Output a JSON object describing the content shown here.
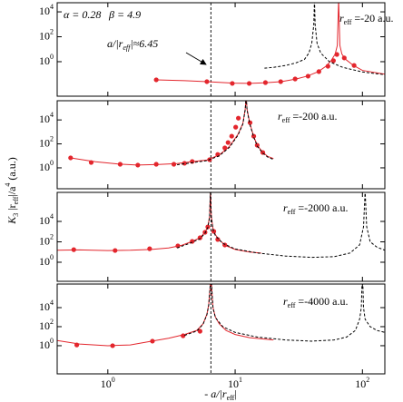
{
  "chart_data": [
    {
      "type": "line",
      "xlim": [
        0.4,
        150
      ],
      "ylim": [
        0.0017,
        54000
      ],
      "log_x": true,
      "log_y": true,
      "yticks": [
        {
          "value": 1,
          "label": "10",
          "exponent": "0"
        },
        {
          "value": 100,
          "label": "10",
          "exponent": "2"
        },
        {
          "value": 10000,
          "label": "10",
          "exponent": "4"
        }
      ],
      "params": [
        "α = 0.28",
        "β = 4.9"
      ],
      "annotation": [
        "a/|r",
        "eff",
        "|≈6.45"
      ],
      "label": [
        "r",
        "eff",
        " =-20 a.u."
      ],
      "vline": 6.45,
      "y_label": [
        "K",
        "3",
        " |r",
        "eff",
        "|/a",
        "4",
        " (a.u.)"
      ],
      "series": [
        {
          "color": "#e3262d",
          "style": "line",
          "x": [
            2.4,
            4,
            6,
            9.5,
            13,
            17,
            23,
            30,
            37,
            45,
            52,
            57,
            61,
            63.5,
            65,
            66.5,
            69,
            74,
            85,
            100,
            150
          ],
          "values": [
            0.035,
            0.03,
            0.025,
            0.019,
            0.018,
            0.02,
            0.025,
            0.04,
            0.07,
            0.16,
            0.45,
            1.3,
            4,
            20,
            100000,
            20,
            4,
            1.5,
            0.5,
            0.2,
            0.1
          ]
        },
        {
          "color": "#e3262d",
          "style": "markers",
          "x": [
            2.4,
            6,
            9.5,
            12.9,
            17.3,
            22.8,
            29.6,
            37.4,
            45.5,
            53.6,
            59.2,
            63,
            72,
            86
          ],
          "values": [
            0.035,
            0.025,
            0.018,
            0.018,
            0.021,
            0.025,
            0.041,
            0.069,
            0.16,
            0.43,
            1.2,
            3.8,
            2,
            0.5
          ]
        },
        {
          "color": "#000000",
          "style": "dashed",
          "x": [
            17,
            20,
            25,
            30,
            35,
            38,
            40,
            41.5,
            42,
            42.5,
            44,
            47,
            55,
            70,
            100,
            150
          ],
          "values": [
            0.3,
            0.35,
            0.5,
            0.8,
            1.5,
            5,
            30,
            1000,
            100000,
            1000,
            30,
            5,
            1,
            0.35,
            0.15,
            0.09
          ]
        }
      ]
    },
    {
      "type": "line",
      "xlim": [
        0.4,
        150
      ],
      "ylim": [
        0.018,
        400000
      ],
      "log_x": true,
      "log_y": true,
      "yticks": [
        {
          "value": 1,
          "label": "10",
          "exponent": "0"
        },
        {
          "value": 100,
          "label": "10",
          "exponent": "2"
        },
        {
          "value": 10000,
          "label": "10",
          "exponent": "4"
        }
      ],
      "label": [
        "r",
        "eff",
        " =-200 a.u."
      ],
      "vline": 6.45,
      "series": [
        {
          "color": "#e3262d",
          "style": "line",
          "x": [
            0.51,
            0.8,
            1.2,
            1.7,
            2.5,
            3.5,
            4.5,
            6,
            7.5,
            9,
            10.5,
            11.5,
            12,
            12.2,
            12.4,
            13,
            14,
            15,
            16.5,
            18,
            20
          ],
          "values": [
            6.8,
            3.2,
            2.1,
            1.7,
            1.9,
            2.3,
            3.2,
            4.5,
            12,
            60,
            600,
            5000,
            80000,
            1000000,
            80000,
            6000,
            400,
            70,
            20,
            9,
            6
          ]
        },
        {
          "color": "#e3262d",
          "style": "markers",
          "x": [
            0.51,
            0.74,
            1.25,
            1.72,
            2.4,
            3.3,
            4.0,
            4.6,
            6.3,
            7.3,
            8.3,
            8.8,
            9.4,
            10.1,
            10.6,
            13.1,
            14.0,
            14.9,
            16.5
          ],
          "values": [
            6.8,
            2.8,
            2,
            1.7,
            2,
            2,
            2.4,
            3.4,
            4.8,
            13,
            46,
            130,
            440,
            2500,
            14000,
            5900,
            440,
            77,
            19
          ]
        },
        {
          "color": "#000000",
          "style": "dashed",
          "x": [
            3.5,
            4.5,
            6,
            7.5,
            9,
            10.5,
            11.5,
            12,
            12.2,
            12.4,
            13,
            14,
            15,
            16.5,
            18,
            20
          ],
          "values": [
            1.8,
            2.6,
            4,
            10,
            50,
            500,
            4500,
            70000,
            1000000,
            70000,
            5000,
            350,
            60,
            17,
            8,
            5
          ]
        }
      ]
    },
    {
      "type": "line",
      "xlim": [
        0.4,
        150
      ],
      "ylim": [
        0.0135,
        7000000
      ],
      "log_x": true,
      "log_y": true,
      "yticks": [
        {
          "value": 1,
          "label": "10",
          "exponent": "0"
        },
        {
          "value": 100,
          "label": "10",
          "exponent": "2"
        },
        {
          "value": 10000,
          "label": "10",
          "exponent": "4"
        }
      ],
      "label": [
        "r",
        "eff",
        " =-2000 a.u."
      ],
      "vline": 6.45,
      "series": [
        {
          "color": "#e3262d",
          "style": "line",
          "x": [
            0.4,
            0.6,
            1,
            1.5,
            2.2,
            3,
            3.8,
            4.6,
            5.3,
            5.8,
            6.1,
            6.3,
            6.4,
            6.5,
            6.7,
            7,
            7.5,
            8.5,
            10,
            13,
            16
          ],
          "values": [
            15,
            16,
            14,
            15,
            18,
            25,
            45,
            110,
            250,
            860,
            3000,
            30000,
            10000000,
            30000,
            2000,
            500,
            150,
            40,
            18,
            10,
            8
          ]
        },
        {
          "color": "#e3262d",
          "style": "markers",
          "x": [
            0.54,
            1.14,
            2.13,
            3.55,
            4.6,
            5.3,
            5.8,
            6.1,
            6.8,
            7.3,
            8.3
          ],
          "values": [
            17,
            14,
            21,
            40,
            110,
            250,
            860,
            2900,
            1050,
            170,
            49
          ]
        },
        {
          "color": "#000000",
          "style": "dashed",
          "x": [
            3.5,
            4.5,
            5.3,
            5.8,
            6.1,
            6.3,
            6.4,
            6.5,
            6.7,
            7,
            8,
            10,
            15,
            25,
            40,
            60,
            80,
            95,
            102,
            105,
            108,
            115,
            130,
            150
          ],
          "values": [
            25,
            80,
            200,
            700,
            2500,
            25000,
            10000000,
            25000,
            1500,
            400,
            70,
            20,
            8,
            4,
            3,
            3.5,
            8,
            50,
            3000,
            10000000,
            3000,
            100,
            30,
            15
          ]
        }
      ]
    },
    {
      "type": "line",
      "xlim": [
        0.4,
        150
      ],
      "ylim": [
        0.0011,
        3000000
      ],
      "log_x": true,
      "log_y": true,
      "xticks": [
        {
          "value": 1,
          "label": "10",
          "exponent": "0"
        },
        {
          "value": 10,
          "label": "10",
          "exponent": "1"
        },
        {
          "value": 100,
          "label": "10",
          "exponent": "2"
        }
      ],
      "yticks": [
        {
          "value": 1,
          "label": "10",
          "exponent": "0"
        },
        {
          "value": 100,
          "label": "10",
          "exponent": "2"
        },
        {
          "value": 10000,
          "label": "10",
          "exponent": "4"
        }
      ],
      "label": [
        "r",
        "eff",
        " =-4000 a.u."
      ],
      "vline": 6.45,
      "x_label": [
        "- a/|r",
        "eff",
        "|"
      ],
      "series": [
        {
          "color": "#e3262d",
          "style": "line",
          "x": [
            0.4,
            0.6,
            1,
            1.5,
            2.2,
            3,
            4,
            5,
            5.6,
            6,
            6.2,
            6.35,
            6.45,
            6.55,
            6.7,
            7,
            7.5,
            8.5,
            10,
            13,
            20
          ],
          "values": [
            3.5,
            1.5,
            1,
            1.2,
            3,
            6,
            15,
            40,
            200,
            2000,
            20000,
            1000000,
            100000000,
            1000000,
            10000,
            1000,
            200,
            40,
            15,
            7,
            4
          ]
        },
        {
          "color": "#e3262d",
          "style": "markers",
          "x": [
            0.57,
            1.09,
            2.24,
            3.9,
            5.3
          ],
          "values": [
            1.2,
            1,
            3,
            11,
            33
          ]
        },
        {
          "color": "#000000",
          "style": "dashed",
          "x": [
            4,
            5,
            5.6,
            6,
            6.2,
            6.35,
            6.45,
            6.55,
            6.7,
            7,
            8,
            10,
            15,
            25,
            40,
            60,
            75,
            88,
            95,
            98,
            100,
            102,
            105,
            115,
            130,
            150
          ],
          "values": [
            12,
            35,
            180,
            1800,
            18000,
            900000,
            100000000,
            900000,
            9000,
            900,
            100,
            25,
            8,
            4,
            3,
            4,
            8,
            40,
            600,
            10000,
            100000000,
            10000,
            600,
            100,
            40,
            25
          ]
        }
      ]
    }
  ]
}
